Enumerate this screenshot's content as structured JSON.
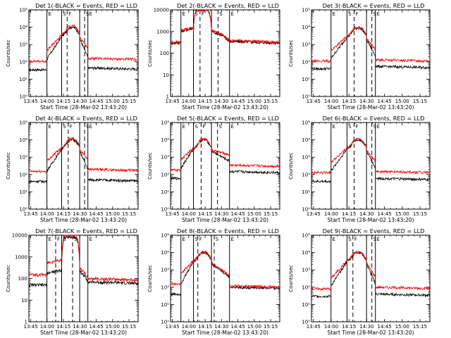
{
  "chart_data": {
    "type": "line",
    "shared": {
      "xlabel": "Start Time (28-Mar-02 13:43:20)",
      "ylabel": "Counts/sec",
      "x_ticks": [
        "13:45",
        "14:00",
        "14:15",
        "14:30",
        "14:45",
        "15:00",
        "15:15"
      ],
      "x_tick_minutes": [
        1.67,
        16.67,
        31.67,
        46.67,
        61.67,
        76.67,
        91.67
      ],
      "xlim_minutes": [
        0,
        100
      ],
      "log_tick_labels": [
        "10⁰",
        "10¹",
        "10²",
        "10³",
        "10⁴",
        "10⁵"
      ],
      "linear_tick_labels": [
        "1",
        "10",
        "100",
        "1000",
        "10000"
      ],
      "series_colors": {
        "events": "#000000",
        "lld": "#ff0000"
      },
      "interval_letters": [
        "E",
        "S",
        "F",
        "S",
        "E"
      ]
    },
    "panels": [
      {
        "title": "Det 1(-BLACK = Events, RED = LLD",
        "yaxis": "log",
        "ylim": [
          1,
          100000
        ],
        "solid_lines": [
          16.5,
          30.0,
          46.5,
          54.0
        ],
        "dashed_lines": [
          35.0,
          51.0
        ],
        "pre_black": 35,
        "pre_red": 110,
        "post_black": 45,
        "post_red": 160,
        "peak_black": 9000,
        "peak_red": 11000,
        "flat_top": false,
        "sat_black": 0,
        "sat_red": 0
      },
      {
        "title": "Det 2(-BLACK = Events, RED = LLD",
        "yaxis": "linear",
        "ylim": [
          1,
          10000
        ],
        "solid_lines": [
          9.5,
          21.0,
          37.5,
          54.0
        ],
        "dashed_lines": [
          27.0,
          43.5
        ],
        "pre_black": 300,
        "pre_red": 320,
        "post_black": 350,
        "post_red": 380,
        "peak_black": 0,
        "peak_red": 0,
        "flat_top": true,
        "sat_black": 10000,
        "sat_red": 10000
      },
      {
        "title": "Det 3(-BLACK = Events, RED = LLD",
        "yaxis": "log",
        "ylim": [
          1,
          100000
        ],
        "solid_lines": [
          16.5,
          30.0,
          46.5,
          54.0
        ],
        "dashed_lines": [
          36.0,
          51.0
        ],
        "pre_black": 40,
        "pre_red": 110,
        "post_black": 55,
        "post_red": 130,
        "peak_black": 8000,
        "peak_red": 9000,
        "flat_top": false,
        "sat_black": 0,
        "sat_red": 0
      },
      {
        "title": "Det 4(-BLACK = Events, RED = LLD",
        "yaxis": "log",
        "ylim": [
          1,
          100000
        ],
        "solid_lines": [
          16.5,
          30.0,
          46.5,
          54.0
        ],
        "dashed_lines": [
          36.0,
          51.0
        ],
        "pre_black": 40,
        "pre_red": 150,
        "post_black": 50,
        "post_red": 200,
        "peak_black": 9000,
        "peak_red": 11000,
        "flat_top": false,
        "sat_black": 0,
        "sat_red": 0
      },
      {
        "title": "Det 5(-BLACK = Events, RED = LLD",
        "yaxis": "log",
        "ylim": [
          1,
          100000
        ],
        "solid_lines": [
          9.5,
          21.0,
          37.5,
          54.0
        ],
        "dashed_lines": [
          28.0,
          43.0
        ],
        "pre_black": 60,
        "pre_red": 180,
        "post_black": 150,
        "post_red": 350,
        "peak_black": 9000,
        "peak_red": 10000,
        "flat_top": false,
        "sat_black": 0,
        "sat_red": 0
      },
      {
        "title": "Det 6(-BLACK = Events, RED = LLD",
        "yaxis": "log",
        "ylim": [
          1,
          100000
        ],
        "solid_lines": [
          16.5,
          30.0,
          46.5,
          54.0
        ],
        "dashed_lines": [
          36.0,
          51.0
        ],
        "pre_black": 40,
        "pre_red": 130,
        "post_black": 60,
        "post_red": 150,
        "peak_black": 9000,
        "peak_red": 10000,
        "flat_top": false,
        "sat_black": 0,
        "sat_red": 0
      },
      {
        "title": "Det 7(-BLACK = Events, RED = LLD",
        "yaxis": "linear",
        "ylim": [
          1,
          10000
        ],
        "solid_lines": [
          16.5,
          30.0,
          46.5,
          54.0
        ],
        "dashed_lines": [
          24.5,
          40.0
        ],
        "pre_black": 50,
        "pre_red": 150,
        "post_black": 70,
        "post_red": 100,
        "peak_black": 0,
        "peak_red": 0,
        "flat_top": true,
        "sat_black": 8000,
        "sat_red": 10000
      },
      {
        "title": "Det 8(-BLACK = Events, RED = LLD",
        "yaxis": "log",
        "ylim": [
          1,
          100000
        ],
        "solid_lines": [
          9.5,
          21.0,
          37.5,
          54.0
        ],
        "dashed_lines": [
          25.0,
          40.0
        ],
        "pre_black": 40,
        "pre_red": 150,
        "post_black": 100,
        "post_red": 120,
        "peak_black": 9000,
        "peak_red": 10000,
        "flat_top": false,
        "sat_black": 0,
        "sat_red": 0
      },
      {
        "title": "Det 9(-BLACK = Events, RED = LLD",
        "yaxis": "log",
        "ylim": [
          1,
          100000
        ],
        "solid_lines": [
          16.5,
          30.0,
          46.5,
          54.0
        ],
        "dashed_lines": [
          35.0,
          51.0
        ],
        "pre_black": 30,
        "pre_red": 80,
        "post_black": 40,
        "post_red": 100,
        "peak_black": 9000,
        "peak_red": 10000,
        "flat_top": false,
        "sat_black": 0,
        "sat_red": 0
      }
    ]
  }
}
